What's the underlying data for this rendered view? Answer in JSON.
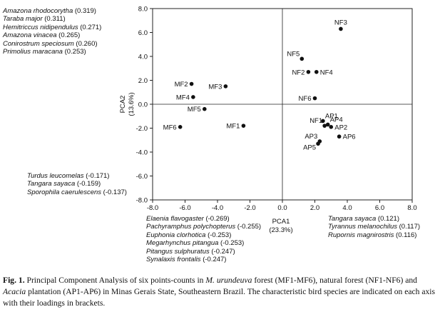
{
  "chart_data": {
    "type": "scatter",
    "xlabel": "PCA1",
    "xlabel_pct": "(23.3%)",
    "ylabel": "PCA2",
    "ylabel_pct": "(13.6%)",
    "xlim": [
      -8.0,
      8.0
    ],
    "ylim": [
      -8.0,
      8.0
    ],
    "xticks": [
      "-8.0",
      "-6.0",
      "-4.0",
      "-2.0",
      "0.0",
      "2.0",
      "4.0",
      "6.0",
      "8.0"
    ],
    "yticks": [
      "8.0",
      "6.0",
      "4.0",
      "2.0",
      "0.0",
      "-2.0",
      "-4.0",
      "-6.0",
      "-8.0"
    ],
    "reference_lines": {
      "x": 0,
      "y": 0
    },
    "points": [
      {
        "label": "MF1",
        "x": -2.4,
        "y": -1.8,
        "label_pos": "left"
      },
      {
        "label": "MF2",
        "x": -5.6,
        "y": 1.7,
        "label_pos": "left"
      },
      {
        "label": "MF3",
        "x": -3.5,
        "y": 1.5,
        "label_pos": "left"
      },
      {
        "label": "MF4",
        "x": -5.5,
        "y": 0.6,
        "label_pos": "left"
      },
      {
        "label": "MF5",
        "x": -4.8,
        "y": -0.4,
        "label_pos": "left"
      },
      {
        "label": "MF6",
        "x": -6.3,
        "y": -1.9,
        "label_pos": "left"
      },
      {
        "label": "NF1",
        "x": 2.6,
        "y": -1.8,
        "label_pos": "left-above"
      },
      {
        "label": "NF2",
        "x": 1.6,
        "y": 2.7,
        "label_pos": "left"
      },
      {
        "label": "NF3",
        "x": 3.6,
        "y": 6.3,
        "label_pos": "above"
      },
      {
        "label": "NF4",
        "x": 2.1,
        "y": 2.7,
        "label_pos": "right"
      },
      {
        "label": "NF5",
        "x": 1.2,
        "y": 3.8,
        "label_pos": "left-above"
      },
      {
        "label": "NF6",
        "x": 2.0,
        "y": 0.5,
        "label_pos": "left"
      },
      {
        "label": "AP1",
        "x": 2.5,
        "y": -1.4,
        "label_pos": "right-above"
      },
      {
        "label": "AP2",
        "x": 3.0,
        "y": -1.9,
        "label_pos": "right"
      },
      {
        "label": "AP3",
        "x": 2.3,
        "y": -3.1,
        "label_pos": "left-above"
      },
      {
        "label": "AP4",
        "x": 2.8,
        "y": -1.7,
        "label_pos": "right-above"
      },
      {
        "label": "AP5",
        "x": 2.2,
        "y": -3.3,
        "label_pos": "left-below"
      },
      {
        "label": "AP6",
        "x": 3.5,
        "y": -2.7,
        "label_pos": "right"
      }
    ]
  },
  "species_loadings": {
    "upper_left": [
      {
        "name": "Amazona rhodocorytha",
        "loading": "(0.319)"
      },
      {
        "name": "Taraba major",
        "loading": "(0.311)"
      },
      {
        "name": "Hemitriccus nidipendulus",
        "loading": "(0.271)"
      },
      {
        "name": "Amazona vinacea",
        "loading": "(0.265)"
      },
      {
        "name": "Conirostrum speciosum",
        "loading": "(0.260)"
      },
      {
        "name": "Primolius maracana",
        "loading": "(0.253)"
      }
    ],
    "lower_left": [
      {
        "name": "Turdus leucomelas",
        "loading": "(-0.171)"
      },
      {
        "name": "Tangara sayaca",
        "loading": "(-0.159)"
      },
      {
        "name": "Sporophila caerulescens",
        "loading": "(-0.137)"
      }
    ],
    "bottom_left": [
      {
        "name": "Elaenia flavogaster",
        "loading": "(-0.269)"
      },
      {
        "name": "Pachyramphus polychopterus",
        "loading": "(-0.255)"
      },
      {
        "name": "Euphonia clorhotica",
        "loading": "(-0.253)"
      },
      {
        "name": "Megarhynchus pitangua",
        "loading": "(-0.253)"
      },
      {
        "name": "Pitangus sulphuratus",
        "loading": "(-0.247)"
      },
      {
        "name": "Synalaxis frontalis",
        "loading": "(-0.247)"
      }
    ],
    "bottom_right": [
      {
        "name": "Tangara sayaca",
        "loading": "(0.121)"
      },
      {
        "name": "Tyrannus melanochilus",
        "loading": "(0.117)"
      },
      {
        "name": "Rupornis magnirostris",
        "loading": "(0.116)"
      }
    ]
  },
  "caption": {
    "label": "Fig. 1.",
    "text_1": " Principal Component Analysis of six points-counts in ",
    "italic_1": "M. urundeuva",
    "text_2": " forest (MF1-MF6), natural forest (NF1-NF6) and ",
    "italic_2": "Acacia",
    "text_3": " plantation (AP1-AP6) in Minas Gerais State, Southeastern Brazil. The characteristic bird species are indicated on each axis with their loadings in brackets."
  },
  "colors": {
    "axis": "#222222",
    "points": "#111111",
    "text": "#111111"
  }
}
